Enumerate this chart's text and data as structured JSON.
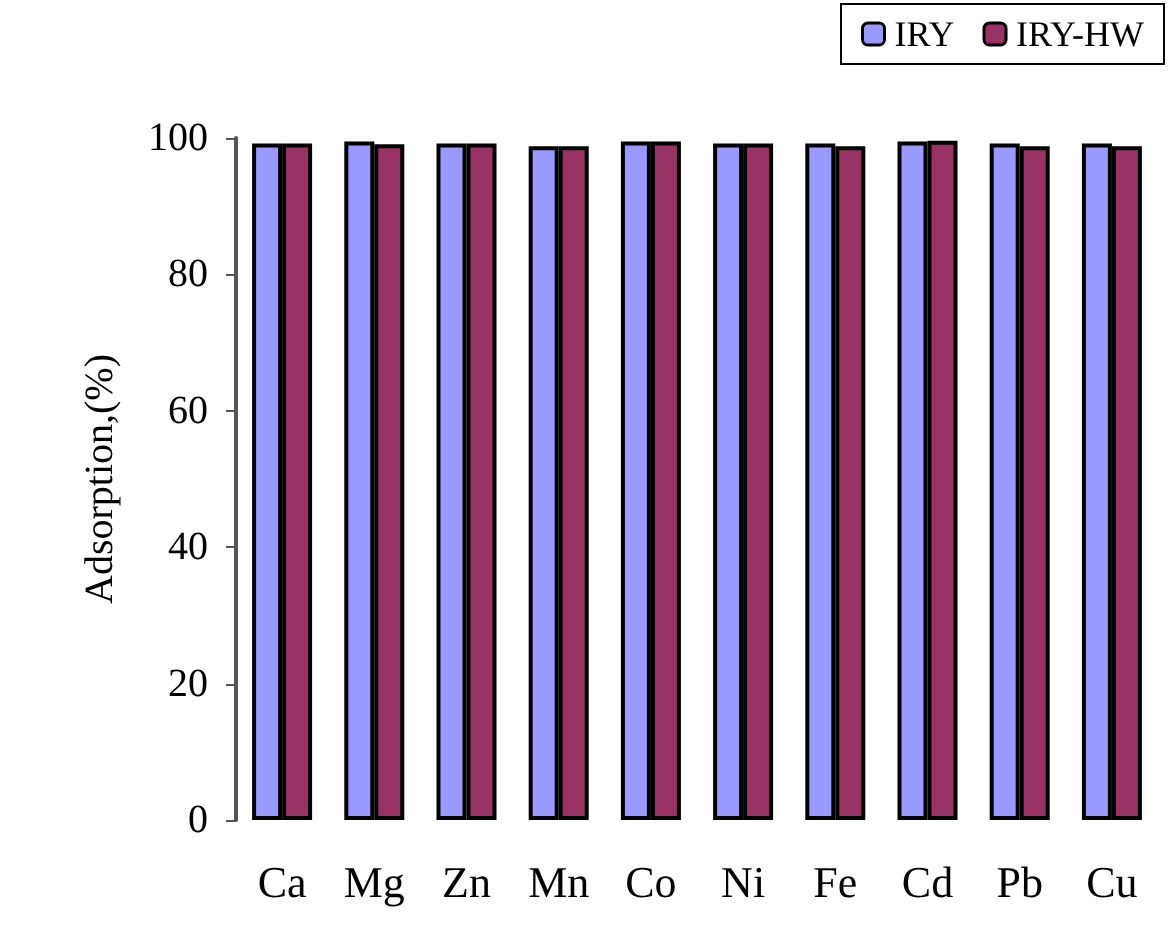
{
  "chart_data": {
    "type": "bar",
    "ylabel": "Adsorption,(%)",
    "categories": [
      "Ca",
      "Mg",
      "Zn",
      "Mn",
      "Co",
      "Ni",
      "Fe",
      "Cd",
      "Pb",
      "Cu"
    ],
    "series": [
      {
        "name": "IRY",
        "color": "#9999ff",
        "values": [
          99.2,
          99.5,
          99.2,
          98.8,
          99.5,
          99.2,
          99.2,
          99.5,
          99.2,
          99.2
        ]
      },
      {
        "name": "IRY-HW",
        "color": "#993366",
        "values": [
          99.2,
          99.1,
          99.2,
          98.8,
          99.5,
          99.2,
          98.8,
          99.6,
          98.8,
          98.8
        ]
      }
    ],
    "ylim": [
      0,
      100
    ],
    "yticks": [
      0,
      20,
      40,
      60,
      80,
      100
    ],
    "grid": false,
    "legend": "top right"
  }
}
